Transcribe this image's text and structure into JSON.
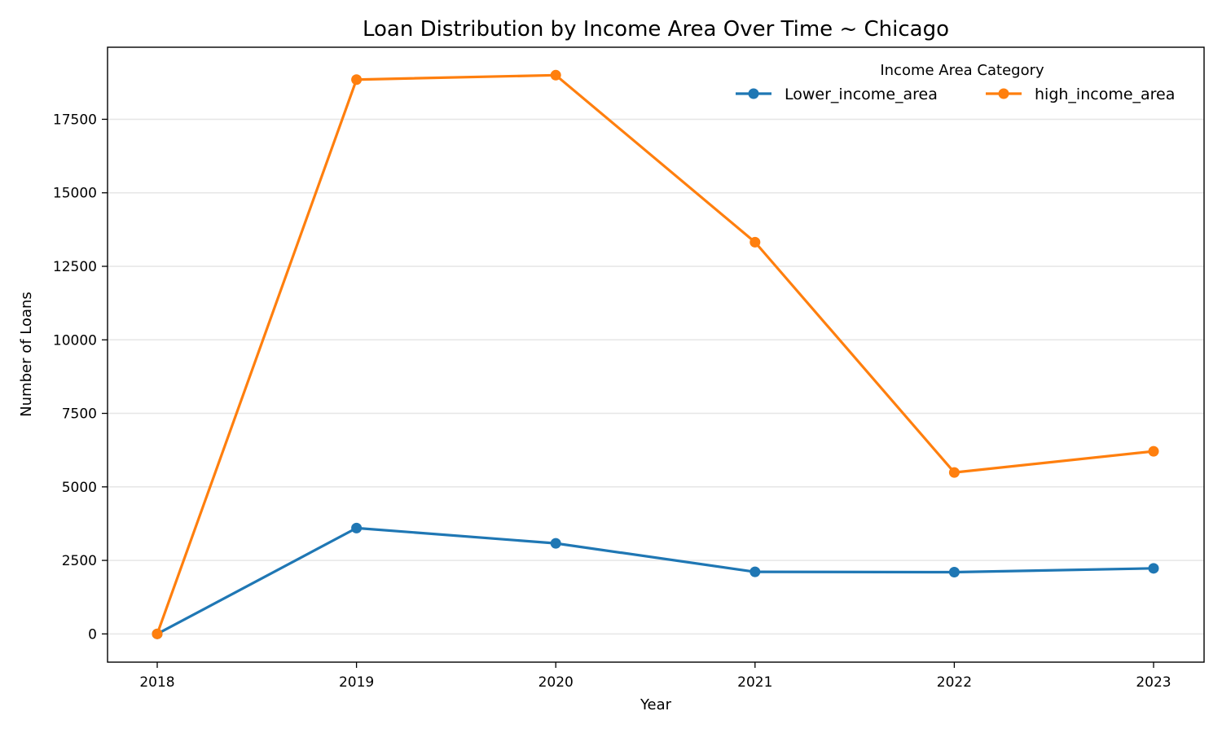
{
  "chart_data": {
    "type": "line",
    "title": "Loan Distribution by Income Area Over Time ~ Chicago",
    "xlabel": "Year",
    "ylabel": "Number of Loans",
    "categories": [
      "2018",
      "2019",
      "2020",
      "2021",
      "2022",
      "2023"
    ],
    "y_ticks": [
      0,
      2500,
      5000,
      7500,
      10000,
      12500,
      15000,
      17500
    ],
    "ylim": [
      -960,
      19950
    ],
    "grid": "horizontal",
    "legend": {
      "title": "Income Area Category",
      "placement": "top-right"
    },
    "series": [
      {
        "name": "Lower_income_area",
        "color": "#1f77b4",
        "values": [
          0,
          3600,
          3080,
          2110,
          2100,
          2230
        ]
      },
      {
        "name": "high_income_area",
        "color": "#ff7f0e",
        "values": [
          0,
          18850,
          19000,
          13320,
          5490,
          6210
        ]
      }
    ]
  }
}
